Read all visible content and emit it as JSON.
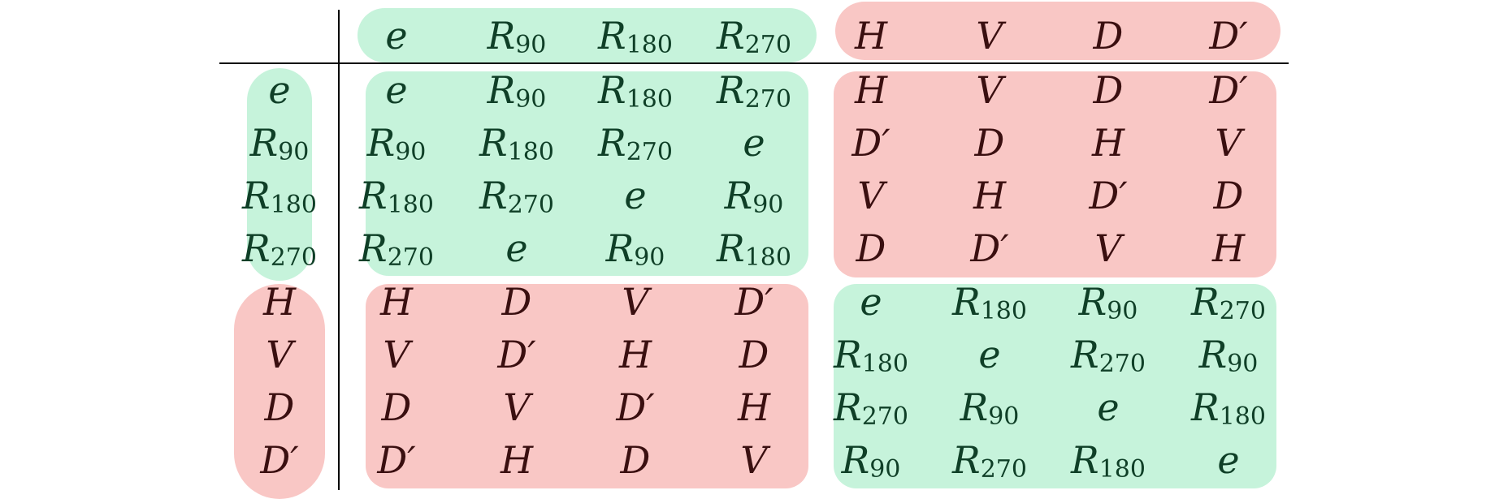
{
  "symbols": [
    "e",
    "R90",
    "R180",
    "R270",
    "H",
    "V",
    "D",
    "D′"
  ],
  "group_colors": {
    "rotation": "#c6f3db",
    "reflection": "#f9c7c5",
    "rotation_text": "#0f3f27",
    "reflection_text": "#3a0f10"
  },
  "header_row": [
    "e",
    "R90",
    "R180",
    "R270",
    "H",
    "V",
    "D",
    "D′"
  ],
  "header_col": [
    "e",
    "R90",
    "R180",
    "R270",
    "H",
    "V",
    "D",
    "D′"
  ],
  "table": [
    [
      "e",
      "R90",
      "R180",
      "R270",
      "H",
      "V",
      "D",
      "D′"
    ],
    [
      "R90",
      "R180",
      "R270",
      "e",
      "D′",
      "D",
      "H",
      "V"
    ],
    [
      "R180",
      "R270",
      "e",
      "R90",
      "V",
      "H",
      "D′",
      "D"
    ],
    [
      "R270",
      "e",
      "R90",
      "R180",
      "D",
      "D′",
      "V",
      "H"
    ],
    [
      "H",
      "D",
      "V",
      "D′",
      "e",
      "R180",
      "R90",
      "R270"
    ],
    [
      "V",
      "D′",
      "H",
      "D",
      "R180",
      "e",
      "R270",
      "R90"
    ],
    [
      "D",
      "V",
      "D′",
      "H",
      "R270",
      "R90",
      "e",
      "R180"
    ],
    [
      "D′",
      "H",
      "D",
      "V",
      "R90",
      "R270",
      "R180",
      "e"
    ]
  ]
}
